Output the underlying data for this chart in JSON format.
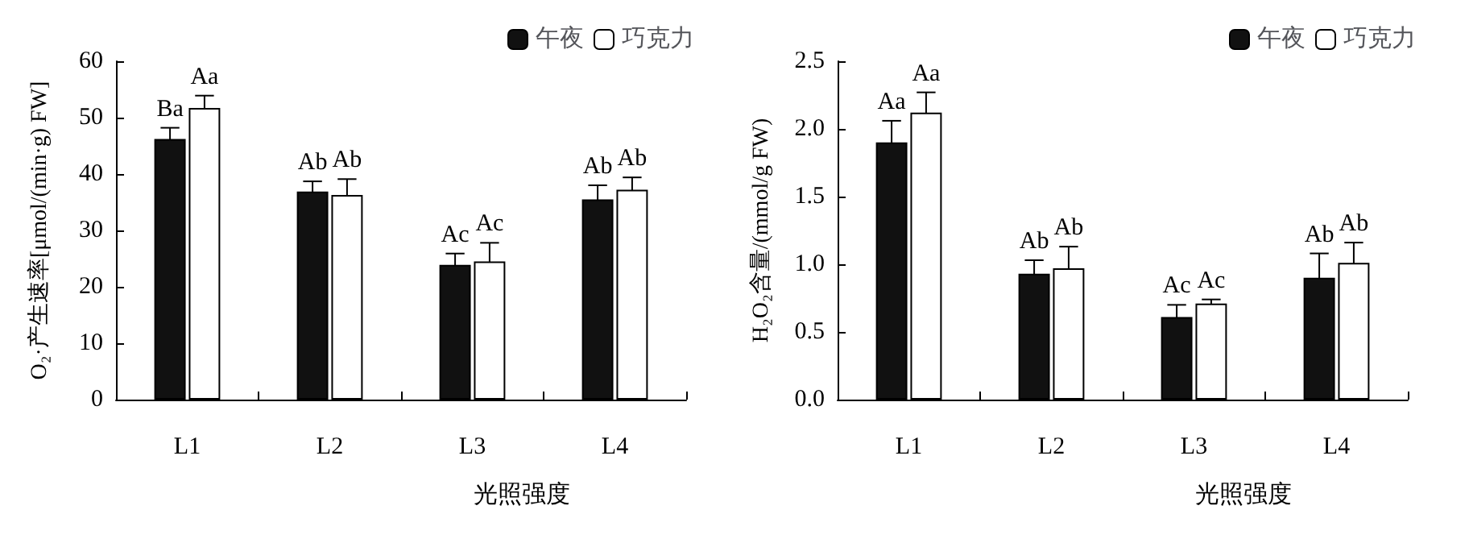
{
  "chart_data": [
    {
      "type": "bar",
      "ylabel": "O₂·产生速率[μmol/(min·g) FW]",
      "xlabel": "光照强度",
      "categories": [
        "L1",
        "L2",
        "L3",
        "L4"
      ],
      "series": [
        {
          "name": "午夜",
          "color": "#111111",
          "values": [
            46.2,
            36.9,
            23.9,
            35.5
          ],
          "errors": [
            2.0,
            1.8,
            2.0,
            2.5
          ],
          "value_labels": [
            "Ba",
            "Ab",
            "Ac",
            "Ab"
          ]
        },
        {
          "name": "巧克力",
          "color": "#ffffff",
          "values": [
            51.7,
            36.3,
            24.5,
            37.2
          ],
          "errors": [
            2.2,
            2.8,
            3.3,
            2.2
          ],
          "value_labels": [
            "Aa",
            "Ab",
            "Ac",
            "Ab"
          ]
        }
      ],
      "ylim": [
        0,
        60
      ],
      "yticks": [
        0,
        10,
        20,
        30,
        40,
        50,
        60
      ],
      "grid": false,
      "legend": "top right"
    },
    {
      "type": "bar",
      "ylabel": "H₂O₂含量/(mmol/g FW)",
      "xlabel": "光照强度",
      "categories": [
        "L1",
        "L2",
        "L3",
        "L4"
      ],
      "series": [
        {
          "name": "午夜",
          "color": "#111111",
          "values": [
            1.9,
            0.93,
            0.61,
            0.9
          ],
          "errors": [
            0.16,
            0.1,
            0.09,
            0.18
          ],
          "value_labels": [
            "Aa",
            "Ab",
            "Ac",
            "Ab"
          ]
        },
        {
          "name": "巧克力",
          "color": "#ffffff",
          "values": [
            2.12,
            0.97,
            0.71,
            1.01
          ],
          "errors": [
            0.15,
            0.16,
            0.03,
            0.15
          ],
          "value_labels": [
            "Aa",
            "Ab",
            "Ac",
            "Ab"
          ]
        }
      ],
      "ylim": [
        0,
        2.5
      ],
      "yticks": [
        {
          "value": 0,
          "label": "0.0"
        },
        {
          "value": 0.5,
          "label": "0.5"
        },
        {
          "value": 1,
          "label": "1.0"
        },
        {
          "value": 1.5,
          "label": "1.5"
        },
        {
          "value": 2,
          "label": "2.0"
        },
        {
          "value": 2.5,
          "label": "2.5"
        }
      ],
      "grid": false,
      "legend": "top right"
    }
  ]
}
